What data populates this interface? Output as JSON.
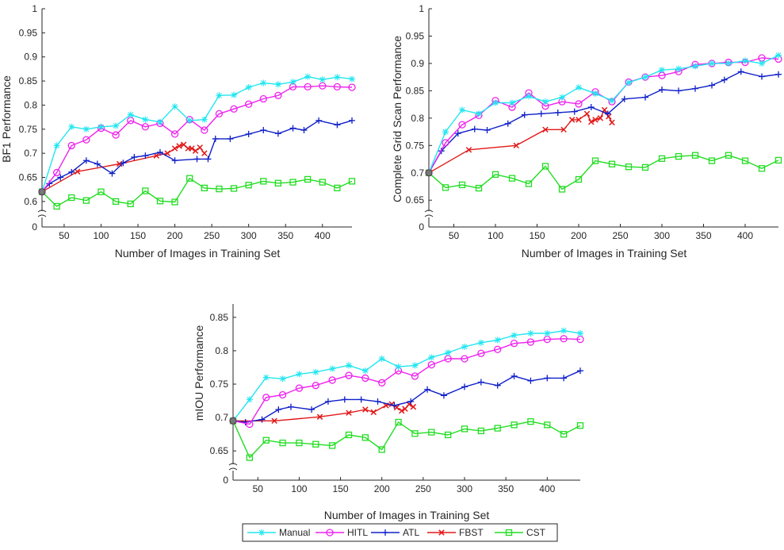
{
  "figure": {
    "legend": [
      {
        "name": "Manual",
        "color": "#22e6f0",
        "marker": "asterisk"
      },
      {
        "name": "HITL",
        "color": "#ee22ee",
        "marker": "circle"
      },
      {
        "name": "ATL",
        "color": "#1020c8",
        "marker": "plus"
      },
      {
        "name": "FBST",
        "color": "#e21818",
        "marker": "x"
      },
      {
        "name": "CST",
        "color": "#22dd22",
        "marker": "square"
      }
    ]
  },
  "chart_data": [
    {
      "type": "line",
      "title": "",
      "xlabel": "Number of Images in Training Set",
      "ylabel": "BF1 Performance",
      "xlim": [
        20,
        440
      ],
      "ylim": [
        0.58,
        1
      ],
      "axis_break": true,
      "xticks": [
        50,
        100,
        150,
        200,
        250,
        300,
        350,
        400
      ],
      "yticks": [
        0.6,
        0.65,
        0.7,
        0.75,
        0.8,
        0.85,
        0.9,
        0.95,
        1
      ],
      "ytick_labels": [
        "0.6",
        "0.65",
        "0.7",
        "0.75",
        "0.8",
        "0.85",
        "0.9",
        "0.95",
        "1"
      ],
      "zero_label": "0",
      "series": [
        {
          "name": "Manual",
          "x": [
            20,
            40,
            60,
            80,
            100,
            120,
            140,
            160,
            180,
            200,
            220,
            240,
            260,
            280,
            300,
            320,
            340,
            360,
            380,
            400,
            420,
            440
          ],
          "y": [
            0.62,
            0.716,
            0.755,
            0.75,
            0.755,
            0.757,
            0.78,
            0.77,
            0.765,
            0.797,
            0.768,
            0.77,
            0.82,
            0.821,
            0.837,
            0.846,
            0.843,
            0.848,
            0.859,
            0.853,
            0.858,
            0.854
          ]
        },
        {
          "name": "HITL",
          "x": [
            20,
            40,
            60,
            80,
            100,
            120,
            140,
            160,
            180,
            200,
            220,
            240,
            260,
            280,
            300,
            320,
            340,
            360,
            380,
            400,
            420,
            440
          ],
          "y": [
            0.62,
            0.66,
            0.716,
            0.728,
            0.752,
            0.738,
            0.768,
            0.755,
            0.762,
            0.74,
            0.77,
            0.748,
            0.782,
            0.792,
            0.802,
            0.813,
            0.82,
            0.838,
            0.838,
            0.84,
            0.838,
            0.837
          ]
        },
        {
          "name": "ATL",
          "x": [
            20,
            30,
            45,
            60,
            80,
            95,
            115,
            130,
            145,
            160,
            180,
            200,
            230,
            245,
            255,
            275,
            300,
            320,
            340,
            360,
            375,
            395,
            420,
            440
          ],
          "y": [
            0.62,
            0.637,
            0.65,
            0.661,
            0.685,
            0.678,
            0.658,
            0.68,
            0.692,
            0.695,
            0.702,
            0.685,
            0.688,
            0.688,
            0.73,
            0.73,
            0.74,
            0.748,
            0.741,
            0.752,
            0.748,
            0.768,
            0.759,
            0.768
          ]
        },
        {
          "name": "FBST",
          "x": [
            20,
            68,
            125,
            175,
            190,
            200,
            206,
            212,
            218,
            223,
            228,
            234,
            240
          ],
          "y": [
            0.62,
            0.662,
            0.678,
            0.695,
            0.7,
            0.71,
            0.715,
            0.718,
            0.71,
            0.71,
            0.705,
            0.712,
            0.7
          ]
        },
        {
          "name": "CST",
          "x": [
            20,
            40,
            60,
            80,
            100,
            120,
            140,
            160,
            180,
            200,
            220,
            240,
            260,
            280,
            300,
            320,
            340,
            360,
            380,
            400,
            420,
            440
          ],
          "y": [
            0.62,
            0.59,
            0.608,
            0.602,
            0.62,
            0.6,
            0.595,
            0.622,
            0.601,
            0.599,
            0.648,
            0.628,
            0.626,
            0.627,
            0.634,
            0.642,
            0.638,
            0.64,
            0.646,
            0.64,
            0.628,
            0.642
          ]
        }
      ]
    },
    {
      "type": "line",
      "title": "",
      "xlabel": "Number of Images in Training Set",
      "ylabel": "Complete Grid Scan Performance",
      "xlim": [
        20,
        440
      ],
      "ylim": [
        0.63,
        1
      ],
      "axis_break": true,
      "xticks": [
        50,
        100,
        150,
        200,
        250,
        300,
        350,
        400
      ],
      "yticks": [
        0.65,
        0.7,
        0.75,
        0.8,
        0.85,
        0.9,
        0.95,
        1
      ],
      "ytick_labels": [
        "0.65",
        "0.7",
        "0.75",
        "0.8",
        "0.85",
        "0.9",
        "0.95",
        "1"
      ],
      "zero_label": "0",
      "series": [
        {
          "name": "Manual",
          "x": [
            20,
            40,
            60,
            80,
            100,
            120,
            140,
            160,
            180,
            200,
            220,
            240,
            260,
            280,
            300,
            320,
            340,
            360,
            380,
            400,
            420,
            440
          ],
          "y": [
            0.7,
            0.775,
            0.815,
            0.808,
            0.828,
            0.828,
            0.84,
            0.83,
            0.838,
            0.856,
            0.845,
            0.832,
            0.865,
            0.875,
            0.888,
            0.89,
            0.895,
            0.9,
            0.9,
            0.905,
            0.9,
            0.915
          ]
        },
        {
          "name": "HITL",
          "x": [
            20,
            40,
            60,
            80,
            100,
            120,
            140,
            160,
            180,
            200,
            220,
            240,
            260,
            280,
            300,
            320,
            340,
            360,
            380,
            400,
            420,
            440
          ],
          "y": [
            0.7,
            0.755,
            0.788,
            0.805,
            0.832,
            0.82,
            0.846,
            0.822,
            0.83,
            0.826,
            0.848,
            0.83,
            0.866,
            0.875,
            0.878,
            0.885,
            0.898,
            0.9,
            0.902,
            0.902,
            0.91,
            0.908
          ]
        },
        {
          "name": "ATL",
          "x": [
            20,
            35,
            55,
            75,
            90,
            115,
            135,
            155,
            175,
            195,
            215,
            235,
            255,
            280,
            300,
            320,
            340,
            360,
            375,
            395,
            420,
            440
          ],
          "y": [
            0.7,
            0.74,
            0.772,
            0.78,
            0.778,
            0.79,
            0.806,
            0.808,
            0.81,
            0.812,
            0.82,
            0.808,
            0.835,
            0.838,
            0.852,
            0.85,
            0.854,
            0.86,
            0.87,
            0.885,
            0.876,
            0.88
          ]
        },
        {
          "name": "FBST",
          "x": [
            20,
            68,
            125,
            160,
            182,
            192,
            200,
            210,
            215,
            220,
            226,
            231,
            236,
            240
          ],
          "y": [
            0.7,
            0.742,
            0.75,
            0.779,
            0.779,
            0.797,
            0.797,
            0.808,
            0.793,
            0.797,
            0.8,
            0.815,
            0.803,
            0.792
          ]
        },
        {
          "name": "CST",
          "x": [
            20,
            40,
            60,
            80,
            100,
            120,
            140,
            160,
            180,
            200,
            220,
            240,
            260,
            280,
            300,
            320,
            340,
            360,
            380,
            400,
            420,
            440
          ],
          "y": [
            0.7,
            0.673,
            0.678,
            0.672,
            0.697,
            0.69,
            0.68,
            0.712,
            0.67,
            0.688,
            0.722,
            0.716,
            0.711,
            0.71,
            0.726,
            0.73,
            0.732,
            0.722,
            0.732,
            0.722,
            0.708,
            0.723
          ]
        }
      ]
    },
    {
      "type": "line",
      "title": "",
      "xlabel": "Number of Images in Training Set",
      "ylabel": "mIOU Performance",
      "xlim": [
        20,
        440
      ],
      "ylim": [
        0.63,
        0.87
      ],
      "axis_break": true,
      "xticks": [
        50,
        100,
        150,
        200,
        250,
        300,
        350,
        400
      ],
      "yticks": [
        0.65,
        0.7,
        0.75,
        0.8,
        0.85
      ],
      "ytick_labels": [
        "0.65",
        "0.7",
        "0.75",
        "0.8",
        "0.85"
      ],
      "zero_label": "0",
      "series": [
        {
          "name": "Manual",
          "x": [
            20,
            40,
            60,
            80,
            100,
            120,
            140,
            160,
            180,
            200,
            220,
            240,
            260,
            280,
            300,
            320,
            340,
            360,
            380,
            400,
            420,
            440
          ],
          "y": [
            0.695,
            0.727,
            0.76,
            0.758,
            0.765,
            0.768,
            0.773,
            0.778,
            0.77,
            0.788,
            0.776,
            0.778,
            0.79,
            0.797,
            0.806,
            0.812,
            0.816,
            0.823,
            0.826,
            0.826,
            0.83,
            0.826
          ]
        },
        {
          "name": "HITL",
          "x": [
            20,
            40,
            60,
            80,
            100,
            120,
            140,
            160,
            180,
            200,
            220,
            240,
            260,
            280,
            300,
            320,
            340,
            360,
            380,
            400,
            420,
            440
          ],
          "y": [
            0.695,
            0.69,
            0.73,
            0.734,
            0.744,
            0.748,
            0.756,
            0.763,
            0.759,
            0.752,
            0.77,
            0.762,
            0.779,
            0.788,
            0.788,
            0.796,
            0.802,
            0.811,
            0.813,
            0.817,
            0.818,
            0.817
          ]
        },
        {
          "name": "ATL",
          "x": [
            20,
            35,
            55,
            75,
            90,
            115,
            135,
            155,
            175,
            195,
            215,
            235,
            255,
            275,
            300,
            320,
            340,
            360,
            380,
            400,
            420,
            440
          ],
          "y": [
            0.695,
            0.693,
            0.697,
            0.712,
            0.716,
            0.712,
            0.724,
            0.727,
            0.727,
            0.724,
            0.718,
            0.724,
            0.742,
            0.733,
            0.746,
            0.753,
            0.748,
            0.762,
            0.755,
            0.759,
            0.759,
            0.77
          ]
        },
        {
          "name": "FBST",
          "x": [
            20,
            70,
            125,
            160,
            180,
            190,
            205,
            212,
            218,
            224,
            228,
            233,
            238
          ],
          "y": [
            0.695,
            0.695,
            0.701,
            0.707,
            0.712,
            0.708,
            0.718,
            0.72,
            0.715,
            0.71,
            0.713,
            0.72,
            0.716
          ]
        },
        {
          "name": "CST",
          "x": [
            20,
            40,
            60,
            80,
            100,
            120,
            140,
            160,
            180,
            200,
            220,
            240,
            260,
            280,
            300,
            320,
            340,
            360,
            380,
            400,
            420,
            440
          ],
          "y": [
            0.695,
            0.64,
            0.666,
            0.662,
            0.662,
            0.66,
            0.658,
            0.674,
            0.67,
            0.652,
            0.693,
            0.676,
            0.678,
            0.674,
            0.683,
            0.68,
            0.684,
            0.689,
            0.694,
            0.689,
            0.675,
            0.688
          ]
        }
      ]
    }
  ]
}
